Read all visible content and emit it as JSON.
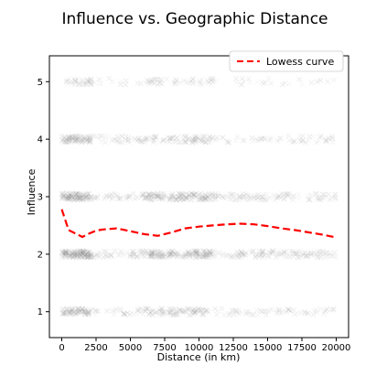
{
  "chart_data": {
    "type": "scatter",
    "title": "Influence vs. Geographic Distance",
    "xlabel": "Distance (in km)",
    "ylabel": "Influence",
    "xlim": [
      -900,
      20900
    ],
    "ylim": [
      0.55,
      5.45
    ],
    "xticks": [
      0,
      2500,
      5000,
      7500,
      10000,
      12500,
      15000,
      17500,
      20000
    ],
    "xtick_labels": [
      "0",
      "2500",
      "5000",
      "7500",
      "10000",
      "12500",
      "15000",
      "17500",
      "20000"
    ],
    "yticks": [
      1,
      2,
      3,
      4,
      5
    ],
    "ytick_labels": [
      "1",
      "2",
      "3",
      "4",
      "5"
    ],
    "grid": false,
    "legend": {
      "position": "top-right",
      "entries": [
        "Lowess curve"
      ]
    },
    "series": [
      {
        "name": "Lowess curve",
        "style": "dashed",
        "color": "#ff0000",
        "x": [
          0,
          500,
          1000,
          1500,
          2000,
          2500,
          3000,
          4000,
          5000,
          6000,
          7000,
          8000,
          9000,
          10000,
          11000,
          12000,
          13000,
          14000,
          15000,
          16000,
          17000,
          18000,
          19000,
          20000
        ],
        "y": [
          2.78,
          2.42,
          2.36,
          2.3,
          2.36,
          2.41,
          2.43,
          2.45,
          2.4,
          2.35,
          2.32,
          2.38,
          2.45,
          2.48,
          2.5,
          2.52,
          2.53,
          2.52,
          2.49,
          2.45,
          2.42,
          2.38,
          2.34,
          2.29
        ]
      },
      {
        "name": "",
        "marker": "x",
        "color": "#808080",
        "levels": [
          1,
          2,
          3,
          4,
          5
        ],
        "x_range": [
          0,
          20000
        ],
        "relative_density_by_level": [
          0.55,
          1.0,
          0.85,
          0.55,
          0.25
        ]
      }
    ]
  }
}
